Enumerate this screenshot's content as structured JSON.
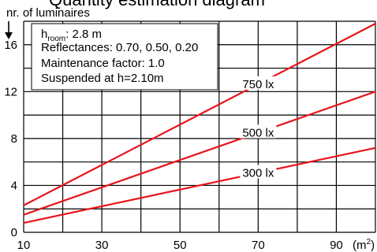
{
  "header": {
    "title": "Quantity estimation diagram"
  },
  "info_box": {
    "h_room_prefix": "h",
    "h_room_subscript": "room",
    "h_room_value": ": 2.8 m",
    "reflectances": "Reflectances: 0.70, 0.50, 0.20",
    "maintenance": "Maintenance factor: 1.0",
    "suspended": "Suspended at h=2.10m"
  },
  "chart_data": {
    "type": "line",
    "title": "Quantity estimation diagram",
    "ylabel": "nr. of luminaires",
    "xlabel_main": "(m",
    "xlabel_sup": "2",
    "xlabel_close": ")",
    "xlim": [
      10,
      100
    ],
    "ylim": [
      0,
      18
    ],
    "x_ticks": [
      10,
      30,
      50,
      70,
      90
    ],
    "y_ticks": [
      0,
      4,
      8,
      12,
      16
    ],
    "x_grid_step": 10,
    "y_grid_step": 2,
    "grid": true,
    "series": [
      {
        "name": "750 lx",
        "x": [
          10,
          100
        ],
        "y": [
          2.3,
          17.8
        ]
      },
      {
        "name": "500 lx",
        "x": [
          10,
          100
        ],
        "y": [
          1.5,
          12.0
        ]
      },
      {
        "name": "300 lx",
        "x": [
          10,
          100
        ],
        "y": [
          0.8,
          7.2
        ]
      }
    ],
    "series_label_x": [
      70,
      70,
      70
    ],
    "color": "#e8141c"
  }
}
